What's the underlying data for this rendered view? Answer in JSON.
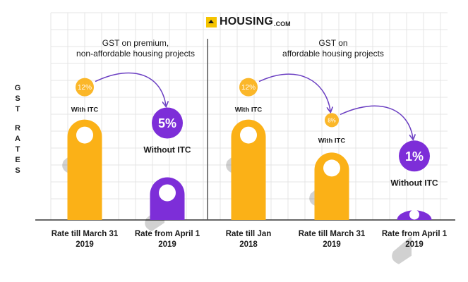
{
  "brand": {
    "name": "HOUSING",
    "suffix": ".COM"
  },
  "y_axis_title": [
    "G",
    "S",
    "T",
    "",
    "R",
    "A",
    "T",
    "E",
    "S"
  ],
  "groups": [
    {
      "caption": [
        "GST on premium,",
        "non-affordable housing projects"
      ]
    },
    {
      "caption": [
        "GST on",
        "affordable housing projects"
      ]
    }
  ],
  "colors": {
    "orange": "#fbb117",
    "purple": "#7d2ed8",
    "divider": "#555555",
    "grid": "#e4e4e4"
  },
  "chart_data": {
    "type": "bar",
    "title": "",
    "ylabel": "GST RATES",
    "categories": [
      [
        "Rate till March 31",
        "2019"
      ],
      [
        "Rate from April 1",
        "2019"
      ],
      [
        "Rate till Jan",
        "2018"
      ],
      [
        "Rate till March 31",
        "2019"
      ],
      [
        "Rate from April 1",
        "2019"
      ]
    ],
    "values": [
      12,
      5,
      12,
      8,
      1
    ],
    "value_labels": [
      "12%",
      "5%",
      "12%",
      "8%",
      "1%"
    ],
    "bar_colors": [
      "orange",
      "purple",
      "orange",
      "orange",
      "purple"
    ],
    "itc_labels": [
      "With ITC",
      "Without ITC",
      "With ITC",
      "With ITC",
      "Without ITC"
    ],
    "ylim": [
      0,
      13
    ],
    "grid": true
  }
}
